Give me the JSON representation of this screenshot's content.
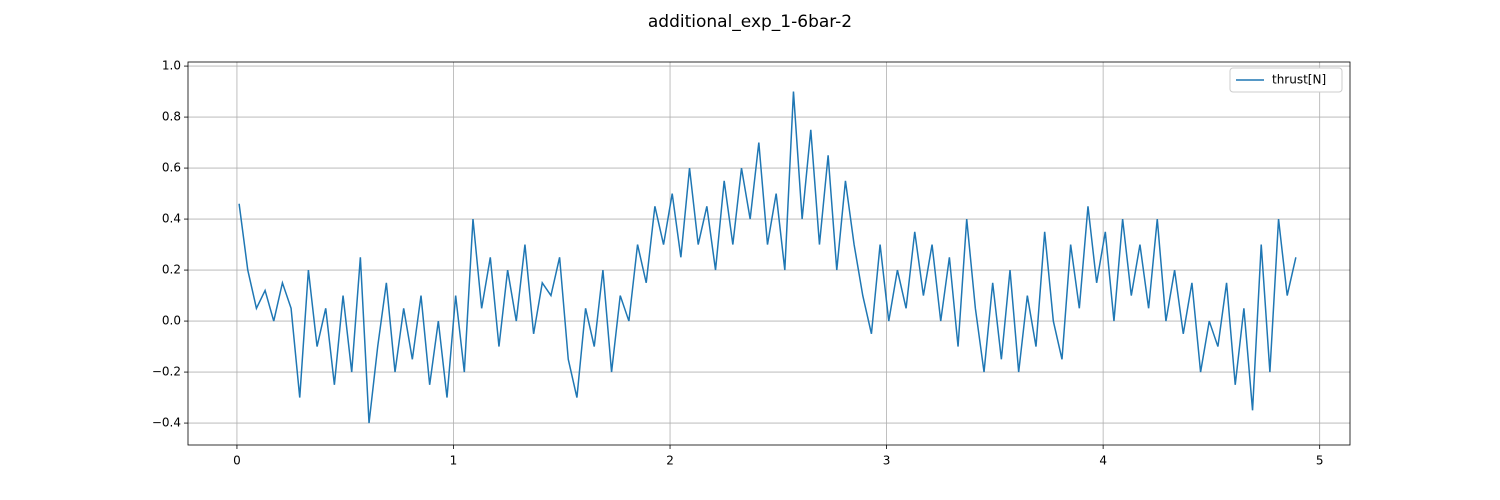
{
  "chart_data": {
    "type": "line",
    "title": "additional_exp_1-6bar-2",
    "x": [
      0.01,
      0.05,
      0.09,
      0.13,
      0.17,
      0.21,
      0.25,
      0.29,
      0.33,
      0.37,
      0.41,
      0.45,
      0.49,
      0.53,
      0.57,
      0.61,
      0.65,
      0.69,
      0.73,
      0.77,
      0.81,
      0.85,
      0.89,
      0.93,
      0.97,
      1.01,
      1.05,
      1.09,
      1.13,
      1.17,
      1.21,
      1.25,
      1.29,
      1.33,
      1.37,
      1.41,
      1.45,
      1.49,
      1.53,
      1.57,
      1.61,
      1.65,
      1.69,
      1.73,
      1.77,
      1.81,
      1.85,
      1.89,
      1.93,
      1.97,
      2.01,
      2.05,
      2.09,
      2.13,
      2.17,
      2.21,
      2.25,
      2.29,
      2.33,
      2.37,
      2.41,
      2.45,
      2.49,
      2.53,
      2.57,
      2.61,
      2.65,
      2.69,
      2.73,
      2.77,
      2.81,
      2.85,
      2.89,
      2.93,
      2.97,
      3.01,
      3.05,
      3.09,
      3.13,
      3.17,
      3.21,
      3.25,
      3.29,
      3.33,
      3.37,
      3.41,
      3.45,
      3.49,
      3.53,
      3.57,
      3.61,
      3.65,
      3.69,
      3.73,
      3.77,
      3.81,
      3.85,
      3.89,
      3.93,
      3.97,
      4.01,
      4.05,
      4.09,
      4.13,
      4.17,
      4.21,
      4.25,
      4.29,
      4.33,
      4.37,
      4.41,
      4.45,
      4.49,
      4.53,
      4.57,
      4.61,
      4.65,
      4.69,
      4.73,
      4.77,
      4.81,
      4.85,
      4.89
    ],
    "series": [
      {
        "name": "thrust[N]",
        "color": "#1f77b4",
        "values": [
          0.46,
          0.2,
          0.05,
          0.12,
          0.0,
          0.15,
          0.05,
          -0.3,
          0.2,
          -0.1,
          0.05,
          -0.25,
          0.1,
          -0.2,
          0.25,
          -0.4,
          -0.1,
          0.15,
          -0.2,
          0.05,
          -0.15,
          0.1,
          -0.25,
          0.0,
          -0.3,
          0.1,
          -0.2,
          0.4,
          0.05,
          0.25,
          -0.1,
          0.2,
          0.0,
          0.3,
          -0.05,
          0.15,
          0.1,
          0.25,
          -0.15,
          -0.3,
          0.05,
          -0.1,
          0.2,
          -0.2,
          0.1,
          0.0,
          0.3,
          0.15,
          0.45,
          0.3,
          0.5,
          0.25,
          0.6,
          0.3,
          0.45,
          0.2,
          0.55,
          0.3,
          0.6,
          0.4,
          0.7,
          0.3,
          0.5,
          0.2,
          0.9,
          0.4,
          0.75,
          0.3,
          0.65,
          0.2,
          0.55,
          0.3,
          0.1,
          -0.05,
          0.3,
          0.0,
          0.2,
          0.05,
          0.35,
          0.1,
          0.3,
          0.0,
          0.25,
          -0.1,
          0.4,
          0.05,
          -0.2,
          0.15,
          -0.15,
          0.2,
          -0.2,
          0.1,
          -0.1,
          0.35,
          0.0,
          -0.15,
          0.3,
          0.05,
          0.45,
          0.15,
          0.35,
          0.0,
          0.4,
          0.1,
          0.3,
          0.05,
          0.4,
          0.0,
          0.2,
          -0.05,
          0.15,
          -0.2,
          0.0,
          -0.1,
          0.15,
          -0.25,
          0.05,
          -0.35,
          0.3,
          -0.2,
          0.4,
          0.1,
          0.25
        ]
      }
    ],
    "xlim": [
      -0.226,
      5.14
    ],
    "ylim": [
      -0.486,
      1.016
    ],
    "xticks": [
      0,
      1,
      2,
      3,
      4,
      5
    ],
    "yticks": [
      {
        "value": -0.4,
        "label": "−0.4"
      },
      {
        "value": -0.2,
        "label": "−0.2"
      },
      {
        "value": 0,
        "label": "0.0"
      },
      0.2,
      0.4,
      0.6,
      0.8,
      {
        "value": 1,
        "label": "1.0"
      }
    ],
    "grid": true,
    "legend": "upper right"
  }
}
